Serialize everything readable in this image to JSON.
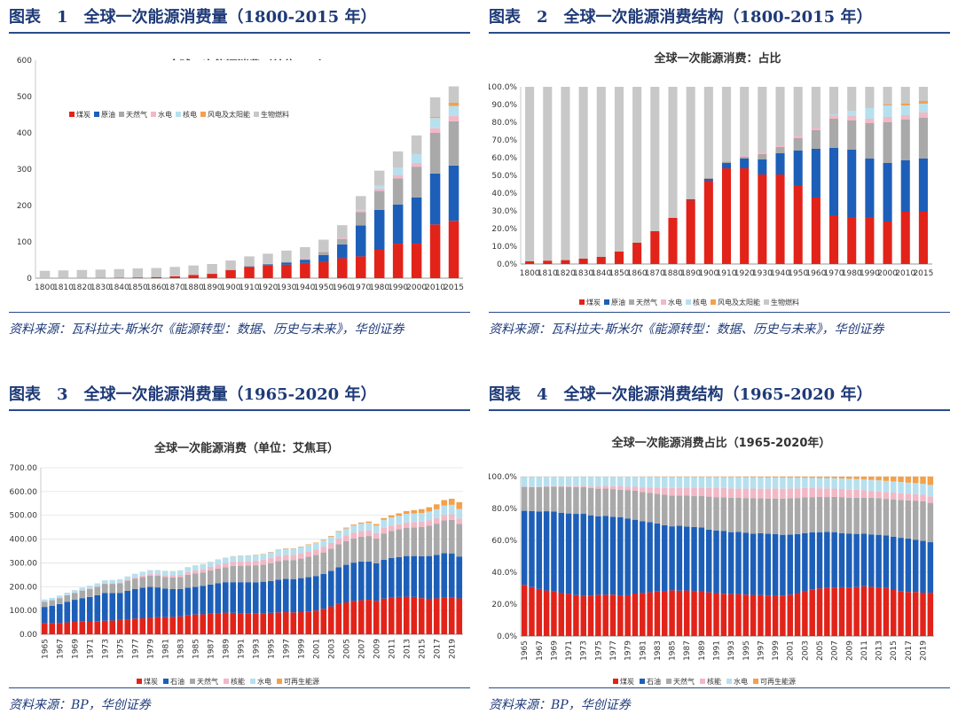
{
  "panels": [
    {
      "label": "图表",
      "number": "1",
      "heading": "全球一次能源消费量（1800-2015 年）",
      "source": "资料来源：瓦科拉夫·斯米尔《能源转型：数据、历史与未来》，华创证券",
      "chart_data": {
        "type": "bar",
        "stacked": true,
        "title": "全球一次能源消费（单位：EJ）",
        "categories": [
          "1800",
          "1810",
          "1820",
          "1830",
          "1840",
          "1850",
          "1860",
          "1870",
          "1880",
          "1890",
          "1900",
          "1910",
          "1920",
          "1930",
          "1940",
          "1950",
          "1960",
          "1970",
          "1980",
          "1990",
          "2000",
          "2010",
          "2015"
        ],
        "ylim": [
          0,
          600
        ],
        "yticks": [
          0,
          100,
          200,
          300,
          400,
          500,
          600
        ],
        "legend_position": "top-left",
        "series": [
          {
            "name": "煤炭",
            "values": [
              0.3,
              0.4,
              0.5,
              0.7,
              1.0,
              2.0,
              3.0,
              5.0,
              9.0,
              12.0,
              22.0,
              31.0,
              36.0,
              37.0,
              42.0,
              45.0,
              55.0,
              60.0,
              78.0,
              95.0,
              95.0,
              148.0,
              158.0
            ]
          },
          {
            "name": "原油",
            "values": [
              0,
              0,
              0,
              0,
              0,
              0,
              0,
              0,
              0,
              0,
              0.5,
              1.5,
              2.0,
              6.0,
              8.0,
              19.0,
              38.0,
              85.0,
              110.0,
              108.0,
              127.0,
              140.0,
              152.0
            ]
          },
          {
            "name": "天然气",
            "values": [
              0,
              0,
              0,
              0,
              0,
              0,
              0,
              0,
              0,
              0,
              0.2,
              0.5,
              1.0,
              2.0,
              3.0,
              8.0,
              15.0,
              37.0,
              52.0,
              72.0,
              85.0,
              112.0,
              122.0
            ]
          },
          {
            "name": "水电",
            "values": [
              0,
              0,
              0,
              0,
              0,
              0,
              0,
              0,
              0,
              0,
              0,
              0,
              0.5,
              1.0,
              1.5,
              2.0,
              3.0,
              5.0,
              7.0,
              9.0,
              10.0,
              13.0,
              15.0
            ]
          },
          {
            "name": "核电",
            "values": [
              0,
              0,
              0,
              0,
              0,
              0,
              0,
              0,
              0,
              0,
              0,
              0,
              0,
              0,
              0,
              0,
              0,
              1.0,
              8.0,
              20.0,
              26.0,
              28.0,
              27.0
            ]
          },
          {
            "name": "风电及太阳能",
            "values": [
              0,
              0,
              0,
              0,
              0,
              0,
              0,
              0,
              0,
              0,
              0,
              0,
              0,
              0,
              0,
              0,
              0,
              0,
              0,
              0,
              1.0,
              3.0,
              9.0
            ]
          },
          {
            "name": "生物燃料",
            "values": [
              20,
              21,
              22,
              23,
              24,
              25,
              25,
              26,
              26,
              27,
              26,
              27,
              28,
              30,
              31,
              32,
              35,
              38,
              41,
              45,
              49,
              54,
              45
            ]
          }
        ]
      }
    },
    {
      "label": "图表",
      "number": "2",
      "heading": "全球一次能源消费结构（1800-2015 年）",
      "source": "资料来源：瓦科拉夫·斯米尔《能源转型：数据、历史与未来》，华创证券",
      "chart_data": {
        "type": "bar",
        "stacked": true,
        "title": "全球一次能源消费：占比",
        "categories": [
          "1800",
          "1810",
          "1820",
          "1830",
          "1840",
          "1850",
          "1860",
          "1870",
          "1880",
          "1890",
          "1900",
          "1910",
          "1920",
          "1930",
          "1940",
          "1950",
          "1960",
          "1970",
          "1980",
          "1990",
          "2000",
          "2010",
          "2015"
        ],
        "ylim": [
          0,
          100
        ],
        "yticks": [
          0,
          10,
          20,
          30,
          40,
          50,
          60,
          70,
          80,
          90,
          100
        ],
        "ytick_suffix": ".0%",
        "legend_position": "bottom",
        "series": [
          {
            "name": "煤炭",
            "values": [
              1.5,
              1.9,
              2.2,
              3.0,
              4.0,
              7.0,
              12.0,
              18.5,
              26.0,
              36.0,
              47.0,
              54.0,
              54.0,
              50.5,
              50.5,
              44.5,
              37.5,
              27.5,
              26.5,
              26.5,
              24.0,
              29.5,
              29.5
            ]
          },
          {
            "name": "原油",
            "values": [
              0,
              0,
              0,
              0,
              0,
              0,
              0,
              0,
              0,
              0.5,
              1.0,
              3.0,
              5.5,
              8.5,
              12.0,
              19.5,
              27.5,
              38.0,
              38.0,
              33.0,
              33.0,
              29.0,
              30.0
            ]
          },
          {
            "name": "天然气",
            "values": [
              0,
              0,
              0,
              0,
              0,
              0,
              0,
              0,
              0,
              0.2,
              0.5,
              0.8,
              1.0,
              3.0,
              3.5,
              7.0,
              10.5,
              16.5,
              16.5,
              20.0,
              23.0,
              23.0,
              23.0
            ]
          },
          {
            "name": "水电",
            "values": [
              0,
              0,
              0,
              0,
              0,
              0,
              0,
              0,
              0,
              0,
              0,
              0.2,
              0.5,
              1.0,
              1.0,
              1.5,
              1.5,
              2.0,
              2.5,
              2.5,
              3.0,
              2.5,
              3.0
            ]
          },
          {
            "name": "核电",
            "values": [
              0,
              0,
              0,
              0,
              0,
              0,
              0,
              0,
              0,
              0,
              0,
              0,
              0,
              0,
              0,
              0,
              0,
              0.5,
              3.0,
              6.0,
              6.5,
              5.5,
              5.0
            ]
          },
          {
            "name": "风电及太阳能",
            "values": [
              0,
              0,
              0,
              0,
              0,
              0,
              0,
              0,
              0,
              0,
              0,
              0,
              0,
              0,
              0,
              0,
              0,
              0,
              0,
              0,
              0.5,
              1.0,
              1.5
            ]
          },
          {
            "name": "生物燃料",
            "values": [
              98.5,
              98.1,
              97.8,
              97.0,
              96.0,
              93.0,
              88.0,
              81.5,
              74.0,
              63.3,
              51.5,
              42.0,
              39.0,
              37.0,
              33.0,
              27.5,
              23.0,
              15.5,
              13.5,
              12.0,
              10.0,
              9.5,
              8.0
            ]
          }
        ]
      }
    },
    {
      "label": "图表",
      "number": "3",
      "heading": "全球一次能源消费量（1965-2020 年）",
      "source": "资料来源：BP，华创证券",
      "chart_data": {
        "type": "bar",
        "stacked": true,
        "title": "全球一次能源消费（单位：艾焦耳）",
        "categories": [
          "1965",
          "1966",
          "1967",
          "1968",
          "1969",
          "1970",
          "1971",
          "1972",
          "1973",
          "1974",
          "1975",
          "1976",
          "1977",
          "1978",
          "1979",
          "1980",
          "1981",
          "1982",
          "1983",
          "1984",
          "1985",
          "1986",
          "1987",
          "1988",
          "1989",
          "1990",
          "1991",
          "1992",
          "1993",
          "1994",
          "1995",
          "1996",
          "1997",
          "1998",
          "1999",
          "2000",
          "2001",
          "2002",
          "2003",
          "2004",
          "2005",
          "2006",
          "2007",
          "2008",
          "2009",
          "2010",
          "2011",
          "2012",
          "2013",
          "2014",
          "2015",
          "2016",
          "2017",
          "2018",
          "2019",
          "2020"
        ],
        "xtick_labels": [
          "1965",
          "1967",
          "1969",
          "1971",
          "1973",
          "1975",
          "1977",
          "1979",
          "1981",
          "1983",
          "1985",
          "1987",
          "1989",
          "1991",
          "1993",
          "1995",
          "1997",
          "1999",
          "2001",
          "2003",
          "2005",
          "2007",
          "2009",
          "2011",
          "2013",
          "2015",
          "2017",
          "2019"
        ],
        "ylim": [
          0,
          700
        ],
        "yticks": [
          0,
          100,
          200,
          300,
          400,
          500,
          600,
          700
        ],
        "ytick_decimals": 2,
        "legend_position": "bottom",
        "series": [
          {
            "name": "煤炭",
            "values": [
              47,
              47,
              48,
              50,
              52,
              53,
              54,
              55,
              57,
              58,
              60,
              63,
              66,
              67,
              69,
              72,
              72,
              73,
              75,
              79,
              83,
              84,
              87,
              89,
              91,
              90,
              89,
              88,
              88,
              89,
              90,
              92,
              93,
              92,
              93,
              96,
              100,
              107,
              117,
              127,
              134,
              140,
              143,
              145,
              141,
              150,
              156,
              157,
              158,
              157,
              152,
              149,
              151,
              156,
              155,
              151
            ]
          },
          {
            "name": "石油",
            "values": [
              68,
              73,
              79,
              87,
              93,
              99,
              103,
              109,
              117,
              115,
              114,
              120,
              124,
              129,
              130,
              125,
              120,
              117,
              115,
              117,
              116,
              120,
              122,
              126,
              128,
              129,
              130,
              131,
              130,
              132,
              134,
              137,
              140,
              140,
              143,
              144,
              145,
              147,
              150,
              155,
              158,
              161,
              163,
              161,
              157,
              163,
              165,
              167,
              171,
              172,
              176,
              180,
              183,
              185,
              185,
              176
            ]
          },
          {
            "name": "天然气",
            "values": [
              22,
              23,
              25,
              27,
              29,
              32,
              34,
              36,
              38,
              39,
              40,
              42,
              44,
              45,
              48,
              49,
              49,
              49,
              50,
              54,
              56,
              56,
              59,
              61,
              63,
              68,
              69,
              70,
              72,
              72,
              75,
              79,
              79,
              80,
              82,
              86,
              88,
              90,
              93,
              96,
              99,
              101,
              104,
              107,
              104,
              111,
              113,
              117,
              119,
              120,
              123,
              127,
              131,
              138,
              141,
              137
            ]
          },
          {
            "name": "核能",
            "values": [
              0.2,
              0.3,
              0.4,
              0.5,
              0.6,
              0.8,
              1,
              1.3,
              1.8,
              2.2,
              3.3,
              3.9,
              4.8,
              5.6,
              5.9,
              6.7,
              7.8,
              8.4,
              9.5,
              11.7,
              13.4,
              14.2,
              15.4,
              16.5,
              17.2,
              18,
              18.8,
              19,
              19.5,
              20,
              21,
              21.9,
              22,
              22.3,
              23.1,
              23.3,
              23.9,
              24.1,
              23.8,
              24.6,
              24.7,
              25,
              24.2,
              23.9,
              23.5,
              24.1,
              23.1,
              21.8,
              22,
              22.3,
              22.5,
              22.5,
              22.7,
              23.1,
              23.6,
              22.5
            ]
          },
          {
            "name": "水电",
            "values": [
              9,
              9.5,
              10,
              10.3,
              11,
              11.5,
              12,
              12.5,
              13,
              14,
              14,
              14,
              14.8,
              15.8,
              16.5,
              17,
              17.5,
              18,
              18.8,
              19.5,
              20,
              20,
              20,
              21,
              21,
              22,
              22.5,
              22.5,
              23.5,
              23.5,
              24.5,
              25,
              25.5,
              25.5,
              25.5,
              26.5,
              26,
              26.5,
              26.5,
              28,
              29,
              30,
              30.5,
              31.5,
              31.5,
              33,
              34,
              35,
              36,
              36.5,
              36.5,
              37.5,
              38,
              39,
              39.5,
              40
            ]
          },
          {
            "name": "可再生能源",
            "values": [
              0.2,
              0.2,
              0.2,
              0.2,
              0.2,
              0.2,
              0.2,
              0.2,
              0.2,
              0.2,
              0.2,
              0.2,
              0.3,
              0.3,
              0.3,
              0.3,
              0.4,
              0.5,
              0.6,
              0.7,
              0.8,
              0.8,
              0.9,
              1,
              1.1,
              1.2,
              1.3,
              1.3,
              1.4,
              1.5,
              1.6,
              1.7,
              1.8,
              1.9,
              2,
              2.2,
              2.4,
              2.7,
              3,
              3.3,
              3.7,
              4.2,
              4.8,
              5.5,
              6.3,
              7.5,
              9,
              10.5,
              12,
              14,
              16,
              18,
              20.5,
              23,
              25.5,
              29
            ]
          }
        ]
      }
    },
    {
      "label": "图表",
      "number": "4",
      "heading": "全球一次能源消费结构（1965-2020 年）",
      "source": "资料来源：BP，华创证券",
      "chart_data": {
        "type": "bar",
        "stacked": true,
        "normalized": true,
        "title": "全球一次能源消费占比（1965-2020年）",
        "xtick_labels": [
          "1965",
          "1967",
          "1969",
          "1971",
          "1973",
          "1975",
          "1977",
          "1979",
          "1981",
          "1983",
          "1985",
          "1987",
          "1989",
          "1991",
          "1993",
          "1995",
          "1997",
          "1999",
          "2001",
          "2003",
          "2005",
          "2007",
          "2009",
          "2011",
          "2013",
          "2015",
          "2017",
          "2019"
        ],
        "ylim": [
          0,
          100
        ],
        "yticks": [
          0,
          20,
          40,
          60,
          80,
          100
        ],
        "ytick_suffix": ".0%",
        "legend_position": "bottom",
        "derived_from": "panel 3 series, shown as share of annual total",
        "series_names": [
          "煤炭",
          "石油",
          "天然气",
          "核能",
          "水电",
          "可再生能源"
        ]
      }
    }
  ],
  "colors": {
    "coal": "#e2231a",
    "oil": "#1d5fb8",
    "gas": "#a9a9a9",
    "hydro_p1": "#f2b8c6",
    "nuclear_p1": "#b7e0ef",
    "wind_solar": "#f5a04a",
    "biofuel": "#c8c8c8",
    "nuclear_p3": "#f2b8c6",
    "hydro_p3": "#b7e0ef",
    "renewable": "#f5a04a",
    "heading": "#1e3a78",
    "rule": "#2a4a8c"
  }
}
